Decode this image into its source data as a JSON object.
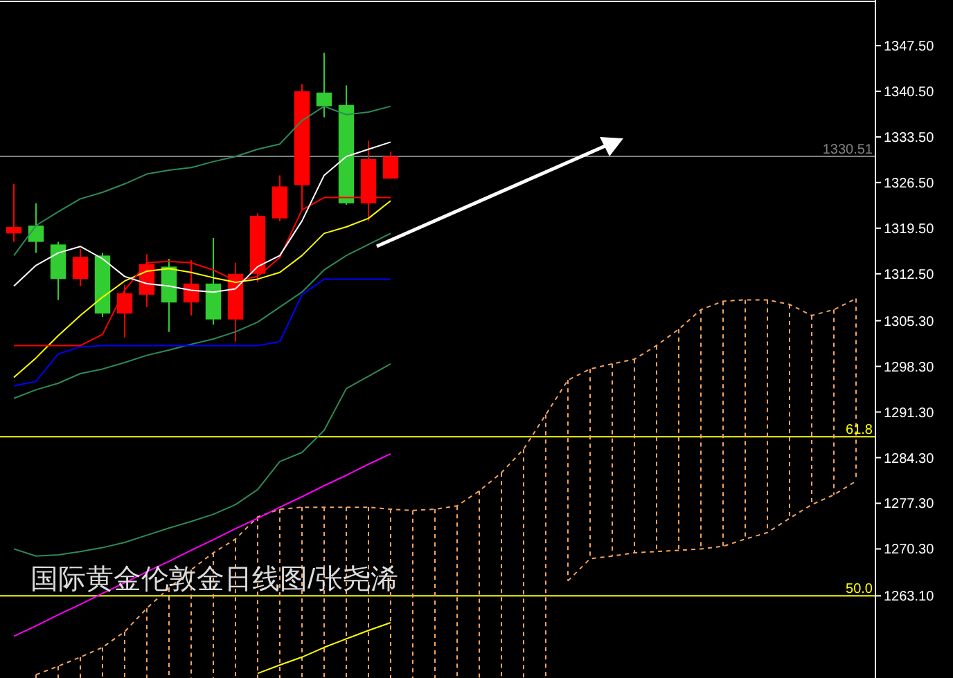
{
  "chart_data": {
    "type": "candlestick",
    "title": "国际黄金伦敦金日线图/张尧浠",
    "categories": [
      null,
      null,
      null,
      null,
      null,
      null,
      null,
      null,
      null,
      null,
      null,
      null,
      null,
      null,
      null,
      null,
      null,
      null,
      null,
      null,
      null,
      null,
      null,
      null,
      null,
      null,
      null,
      null,
      null,
      null,
      null,
      null,
      null,
      null,
      null,
      null,
      null,
      null,
      null
    ],
    "ohlc": [
      [
        1318.7,
        1326.3,
        1317.4,
        1319.7
      ],
      [
        1319.9,
        1323.3,
        1315.7,
        1317.4
      ],
      [
        1317.0,
        1317.4,
        1308.5,
        1311.7
      ],
      [
        1311.7,
        1316.3,
        1310.6,
        1315.1
      ],
      [
        1315.3,
        1315.7,
        1305.9,
        1306.4
      ],
      [
        1306.4,
        1310.8,
        1302.7,
        1309.5
      ],
      [
        1309.3,
        1315.5,
        1307.4,
        1314.0
      ],
      [
        1313.6,
        1314.8,
        1303.6,
        1308.1
      ],
      [
        1308.1,
        1314.6,
        1306.1,
        1311.0
      ],
      [
        1311.0,
        1318.0,
        1304.7,
        1305.5
      ],
      [
        1305.5,
        1314.2,
        1302.1,
        1312.5
      ],
      [
        1312.5,
        1321.8,
        1311.2,
        1321.4
      ],
      [
        1321.0,
        1327.6,
        1320.6,
        1325.9
      ],
      [
        1326.1,
        1341.6,
        1322.3,
        1340.5
      ],
      [
        1340.3,
        1346.4,
        1336.5,
        1338.2
      ],
      [
        1338.4,
        1341.4,
        1323.1,
        1323.3
      ],
      [
        1323.3,
        1332.9,
        1320.6,
        1330.1
      ],
      [
        1327.1,
        1331.2,
        1327.1,
        1330.5
      ],
      null,
      null,
      null,
      null,
      null,
      null,
      null,
      null,
      null,
      null,
      null,
      null,
      null,
      null,
      null,
      null,
      null,
      null,
      null,
      null,
      null
    ],
    "colors": [
      "#ff0000",
      "#32cd32",
      "#32cd32",
      "#ff0000",
      "#32cd32",
      "#ff0000",
      "#ff0000",
      "#32cd32",
      "#ff0000",
      "#32cd32",
      "#ff0000",
      "#ff0000",
      "#ff0000",
      "#ff0000",
      "#32cd32",
      "#32cd32",
      "#ff0000",
      "#ff0000",
      null,
      null,
      null,
      null,
      null,
      null,
      null,
      null,
      null,
      null,
      null,
      null,
      null,
      null,
      null,
      null,
      null,
      null,
      null,
      null,
      null
    ],
    "series": [
      {
        "type": "line",
        "color": "#f4a460",
        "line_style": "dashed",
        "values": [
          null,
          1251.0,
          1252.3,
          1253.7,
          1255.2,
          1257.6,
          1261.2,
          1264.3,
          1267.1,
          1269.7,
          1271.8,
          1275.2,
          1276.4,
          1276.7,
          1276.7,
          1276.7,
          1276.7,
          1276.4,
          1276.2,
          1276.4,
          1276.9,
          1279.2,
          1282.0,
          1285.6,
          1290.9,
          1296.2,
          1297.9,
          1298.7,
          1299.4,
          1301.5,
          1304.0,
          1307.0,
          1308.3,
          1308.5,
          1308.5,
          1307.8,
          1306.1,
          1307.0,
          1308.7
        ]
      },
      {
        "type": "line",
        "color": "#f4a460",
        "line_style": "dashed",
        "values": [
          null,
          null,
          null,
          null,
          null,
          null,
          null,
          null,
          null,
          null,
          null,
          null,
          null,
          null,
          null,
          null,
          null,
          null,
          null,
          null,
          null,
          null,
          null,
          null,
          null,
          1265.4,
          1268.8,
          1269.2,
          1269.7,
          1269.9,
          1270.1,
          1270.3,
          1270.7,
          1271.8,
          1272.8,
          1275.0,
          1277.1,
          1278.6,
          1280.7
        ]
      },
      {
        "type": "line",
        "color": "#ff00ff",
        "values": [
          1256.9,
          1258.5,
          1260.2,
          1261.8,
          1263.5,
          1265.1,
          1266.8,
          1268.4,
          1270.1,
          1271.7,
          1273.4,
          1275.0,
          1276.7,
          1278.3,
          1280.0,
          1281.6,
          1283.3,
          1284.9,
          null,
          null,
          null,
          null,
          null,
          null,
          null,
          null,
          null,
          null,
          null,
          null,
          null,
          null,
          null,
          null,
          null,
          null,
          null,
          null,
          null
        ]
      },
      {
        "type": "line",
        "color": "#ffff00",
        "values": [
          null,
          null,
          null,
          null,
          null,
          null,
          null,
          null,
          null,
          null,
          null,
          1251.2,
          1252.5,
          1253.7,
          1255.2,
          1256.5,
          1257.8,
          1259.0,
          null,
          null,
          null,
          null,
          null,
          null,
          null,
          null,
          null,
          null,
          null,
          null,
          null,
          null,
          null,
          null,
          null,
          null,
          null,
          null,
          null
        ]
      },
      {
        "type": "line",
        "color": "#2e8b57",
        "values": [
          1315.3,
          1319.9,
          1322.0,
          1324.0,
          1325.0,
          1326.3,
          1327.8,
          1328.4,
          1328.8,
          1329.7,
          1330.5,
          1331.6,
          1332.4,
          1336.0,
          1338.2,
          1336.9,
          1337.3,
          1338.2,
          null,
          null,
          null,
          null,
          null,
          null,
          null,
          null,
          null,
          null,
          null,
          null,
          null,
          null,
          null,
          null,
          null,
          null,
          null,
          null,
          null
        ]
      },
      {
        "type": "line",
        "color": "#2e8b57",
        "values": [
          1293.4,
          1294.7,
          1295.7,
          1297.2,
          1297.9,
          1298.9,
          1300.0,
          1300.8,
          1301.7,
          1302.5,
          1303.6,
          1305.1,
          1307.4,
          1309.7,
          1313.1,
          1315.3,
          1317.0,
          1318.7,
          null,
          null,
          null,
          null,
          null,
          null,
          null,
          null,
          null,
          null,
          null,
          null,
          null,
          null,
          null,
          null,
          null,
          null,
          null,
          null,
          null
        ]
      },
      {
        "type": "line",
        "color": "#2e8b57",
        "values": [
          1270.3,
          1269.2,
          1269.4,
          1269.9,
          1270.5,
          1271.3,
          1272.4,
          1273.5,
          1274.5,
          1275.6,
          1277.1,
          1279.4,
          1283.7,
          1285.1,
          1288.5,
          1294.9,
          1296.8,
          1298.7,
          null,
          null,
          null,
          null,
          null,
          null,
          null,
          null,
          null,
          null,
          null,
          null,
          null,
          null,
          null,
          null,
          null,
          null,
          null,
          null,
          null
        ]
      },
      {
        "type": "line",
        "color": "#0000ff",
        "values": [
          1295.3,
          1296.0,
          1300.2,
          1301.3,
          1301.5,
          1301.5,
          1301.5,
          1301.5,
          1301.5,
          1301.5,
          1301.5,
          1301.5,
          1302.1,
          1309.3,
          1311.7,
          1311.7,
          1311.7,
          1311.7,
          null,
          null,
          null,
          null,
          null,
          null,
          null,
          null,
          null,
          null,
          null,
          null,
          null,
          null,
          null,
          null,
          null,
          null,
          null,
          null,
          null
        ]
      },
      {
        "type": "line",
        "color": "#ffff00",
        "values": [
          1296.6,
          1299.6,
          1303.0,
          1306.1,
          1308.9,
          1311.4,
          1312.9,
          1313.3,
          1312.7,
          1311.9,
          1311.2,
          1311.7,
          1312.7,
          1315.3,
          1318.7,
          1319.7,
          1321.0,
          1323.7,
          null,
          null,
          null,
          null,
          null,
          null,
          null,
          null,
          null,
          null,
          null,
          null,
          null,
          null,
          null,
          null,
          null,
          null,
          null,
          null,
          null
        ]
      },
      {
        "type": "line",
        "color": "#ff0000",
        "values": [
          1301.5,
          1301.5,
          1301.5,
          1301.5,
          1303.2,
          1310.0,
          1314.2,
          1314.4,
          1314.2,
          1313.1,
          1311.4,
          1312.1,
          1315.0,
          1322.3,
          1324.2,
          1324.2,
          1324.2,
          1324.2,
          null,
          null,
          null,
          null,
          null,
          null,
          null,
          null,
          null,
          null,
          null,
          null,
          null,
          null,
          null,
          null,
          null,
          null,
          null,
          null,
          null
        ]
      },
      {
        "type": "line",
        "color": "#ffffff",
        "values": [
          1310.6,
          1313.8,
          1315.7,
          1316.7,
          1314.8,
          1312.1,
          1311.0,
          1310.6,
          1310.0,
          1309.7,
          1310.2,
          1313.6,
          1315.3,
          1320.6,
          1327.6,
          1330.5,
          1331.6,
          1332.7,
          null,
          null,
          null,
          null,
          null,
          null,
          null,
          null,
          null,
          null,
          null,
          null,
          null,
          null,
          null,
          null,
          null,
          null,
          null,
          null,
          null
        ]
      }
    ],
    "ylim": [
      1250.5,
      1354.5
    ],
    "yticks": [
      {
        "value": 1347.5,
        "label": "1347.50"
      },
      {
        "value": 1340.5,
        "label": "1340.50"
      },
      {
        "value": 1333.5,
        "label": "1333.50"
      },
      {
        "value": 1326.5,
        "label": "1326.50"
      },
      {
        "value": 1319.5,
        "label": "1319.50"
      },
      {
        "value": 1312.5,
        "label": "1312.50"
      },
      {
        "value": 1305.3,
        "label": "1305.30"
      },
      {
        "value": 1298.3,
        "label": "1298.30"
      },
      {
        "value": 1291.3,
        "label": "1291.30"
      },
      {
        "value": 1284.3,
        "label": "1284.30"
      },
      {
        "value": 1277.3,
        "label": "1277.30"
      },
      {
        "value": 1270.3,
        "label": "1270.30"
      },
      {
        "value": 1263.1,
        "label": "1263.10"
      }
    ],
    "ref_lines": [
      {
        "axis": "y",
        "value": 1330.51,
        "label": "1330.51",
        "color": "#808080"
      },
      {
        "axis": "y",
        "value": 1287.5,
        "color": "#ffff00"
      },
      {
        "axis": "y",
        "value": 1263.1,
        "color": "#ffff00"
      }
    ],
    "annotations": [
      {
        "text": "61.8",
        "y": 1287.5
      },
      {
        "text": "50.0",
        "y": 1263.1
      }
    ]
  }
}
